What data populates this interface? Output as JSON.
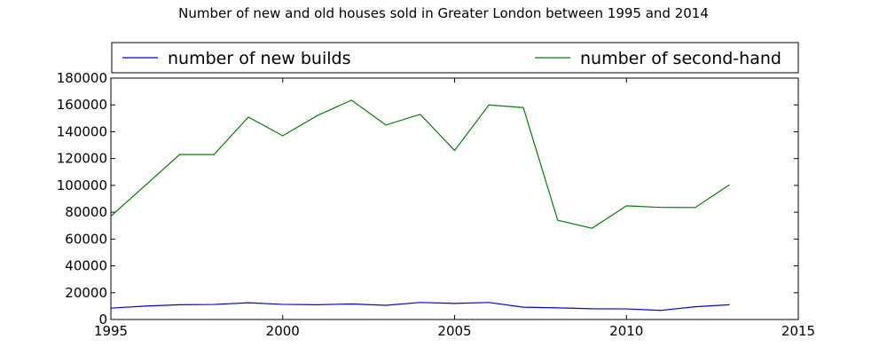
{
  "chart_data": {
    "type": "line",
    "title": "Number of new and old houses sold in Greater London between 1995 and 2014",
    "xlabel": "",
    "ylabel": "",
    "xlim": [
      1995,
      2015
    ],
    "ylim": [
      0,
      180000
    ],
    "x_ticks": [
      1995,
      2000,
      2005,
      2010,
      2015
    ],
    "y_ticks": [
      0,
      20000,
      40000,
      60000,
      80000,
      100000,
      120000,
      140000,
      160000,
      180000
    ],
    "grid": false,
    "legend_position": "top",
    "x": [
      1995,
      1996,
      1997,
      1998,
      1999,
      2000,
      2001,
      2002,
      2003,
      2004,
      2005,
      2006,
      2007,
      2008,
      2009,
      2010,
      2011,
      2012,
      2013
    ],
    "series": [
      {
        "name": "number of new builds",
        "color": "#0000ff",
        "values": [
          8500,
          10000,
          11000,
          11200,
          12500,
          11300,
          11000,
          11600,
          10600,
          12700,
          12000,
          12700,
          9200,
          8700,
          8000,
          7900,
          6800,
          9500,
          11000
        ]
      },
      {
        "name": "number of second-hand",
        "color": "#008000",
        "values": [
          77000,
          100000,
          123000,
          123000,
          151000,
          137000,
          152000,
          163500,
          145000,
          153000,
          126000,
          160000,
          158000,
          74000,
          68000,
          84800,
          83600,
          83500,
          100500
        ]
      }
    ]
  }
}
